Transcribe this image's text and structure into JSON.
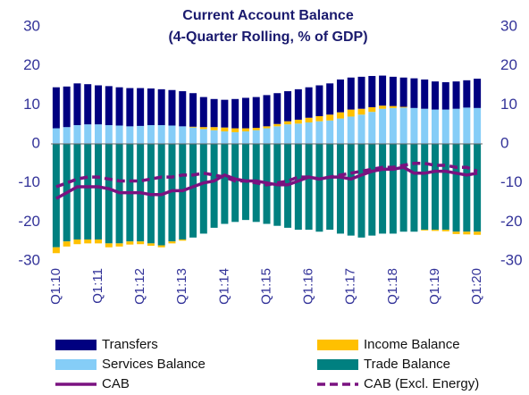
{
  "chart_data": {
    "type": "bar",
    "title": "Current Account Balance",
    "subtitle": "(4-Quarter Rolling, % of GDP)",
    "categories": [
      "Q1:10",
      null,
      null,
      null,
      "Q1:11",
      null,
      null,
      null,
      "Q1:12",
      null,
      null,
      null,
      "Q1:13",
      null,
      null,
      null,
      "Q1:14",
      null,
      null,
      null,
      "Q1:15",
      null,
      null,
      null,
      "Q1:16",
      null,
      null,
      null,
      "Q1:17",
      null,
      null,
      null,
      "Q1:18",
      null,
      null,
      null,
      "Q1:19",
      null,
      null,
      null,
      "Q1:20"
    ],
    "series": [
      {
        "name": "Transfers",
        "type": "bar",
        "color": "#000080",
        "values": [
          10.5,
          10.4,
          10.7,
          10.3,
          10.0,
          10.0,
          9.8,
          9.8,
          9.7,
          9.4,
          9.2,
          9.1,
          9.0,
          8.6,
          7.7,
          7.2,
          7.1,
          7.5,
          7.8,
          7.9,
          8.0,
          7.9,
          7.7,
          7.8,
          7.8,
          7.9,
          8.0,
          8.4,
          8.2,
          8.2,
          8.0,
          7.7,
          7.5,
          7.5,
          7.6,
          7.5,
          7.2,
          7.0,
          7.0,
          7.0,
          7.5
        ]
      },
      {
        "name": "Income Balance",
        "type": "bar",
        "color": "#ffc000",
        "values": [
          -1.5,
          -1.3,
          -1.2,
          -1.0,
          -1.0,
          -1.0,
          -0.8,
          -0.8,
          -0.7,
          -0.6,
          -0.5,
          -0.5,
          -0.3,
          0.2,
          0.5,
          0.8,
          1.0,
          1.0,
          0.8,
          0.6,
          0.5,
          0.6,
          0.8,
          1.0,
          1.2,
          1.3,
          1.5,
          1.6,
          1.8,
          1.5,
          1.2,
          0.8,
          0.5,
          0.2,
          0,
          -0.2,
          -0.3,
          -0.4,
          -0.6,
          -0.7,
          -0.8
        ]
      },
      {
        "name": "Services Balance",
        "type": "bar",
        "color": "#85cdf7",
        "values": [
          4,
          4.3,
          4.8,
          5,
          5,
          4.8,
          4.7,
          4.5,
          4.6,
          4.8,
          4.8,
          4.7,
          4.5,
          4.2,
          3.8,
          3.5,
          3.2,
          3.0,
          3.2,
          3.5,
          4.0,
          4.5,
          5.0,
          5.2,
          5.5,
          5.8,
          6.0,
          6.5,
          7,
          7.5,
          8.2,
          9,
          9.2,
          9.3,
          9.2,
          9.0,
          8.8,
          8.8,
          9.0,
          9.3,
          9.2
        ]
      },
      {
        "name": "Trade Balance",
        "type": "bar",
        "color": "#008080",
        "values": [
          -26.5,
          -25,
          -24.5,
          -24.5,
          -24.5,
          -25.5,
          -25.5,
          -25,
          -25,
          -25.5,
          -26,
          -25,
          -24.5,
          -24,
          -23,
          -21.5,
          -20.5,
          -20,
          -19.5,
          -20,
          -20.5,
          -21,
          -21.5,
          -22,
          -22,
          -22.5,
          -22,
          -23,
          -23.5,
          -24,
          -23.5,
          -23,
          -23,
          -22.5,
          -22.5,
          -22,
          -22,
          -22,
          -22.5,
          -22.5,
          -22.5
        ]
      },
      {
        "name": "CAB",
        "type": "line",
        "color": "#7a1280",
        "dash": false,
        "values": [
          -14,
          -12.5,
          -11,
          -11,
          -11,
          -11.5,
          -12.5,
          -12.5,
          -12.5,
          -13,
          -13,
          -12,
          -12,
          -11,
          -10,
          -9.5,
          -8,
          -9,
          -9.5,
          -9.5,
          -10,
          -10.5,
          -10.5,
          -9.5,
          -8.5,
          -9,
          -8.5,
          -8.5,
          -9,
          -8,
          -7,
          -6.5,
          -6.5,
          -6,
          -7.5,
          -7.5,
          -7,
          -7,
          -7.5,
          -8,
          -7.5
        ]
      },
      {
        "name": "CAB (Excl. Energy)",
        "type": "line",
        "color": "#7a1280",
        "dash": true,
        "values": [
          -11,
          -10,
          -9,
          -8.5,
          -8.5,
          -9,
          -9.5,
          -9.5,
          -9.5,
          -9,
          -8.5,
          -8.5,
          -8,
          -8,
          -7.5,
          -8,
          -8.5,
          -9.5,
          -9.5,
          -10,
          -10.5,
          -10,
          -9.5,
          -8.5,
          -8.5,
          -9,
          -8.5,
          -8,
          -7.5,
          -7,
          -6.5,
          -6,
          -6,
          -5.5,
          -5,
          -5,
          -5.5,
          -5.5,
          -6,
          -6,
          -7
        ]
      }
    ],
    "ylim": [
      -30,
      30
    ],
    "yticks": [
      -30,
      -20,
      -10,
      0,
      10,
      20,
      30
    ],
    "y2lim": [
      -30,
      30
    ],
    "y2ticks": [
      -30,
      -20,
      -10,
      0,
      10,
      20,
      30
    ],
    "stack_order": [
      "Services Balance",
      "Trade Balance",
      "Income Balance",
      "Transfers"
    ]
  }
}
